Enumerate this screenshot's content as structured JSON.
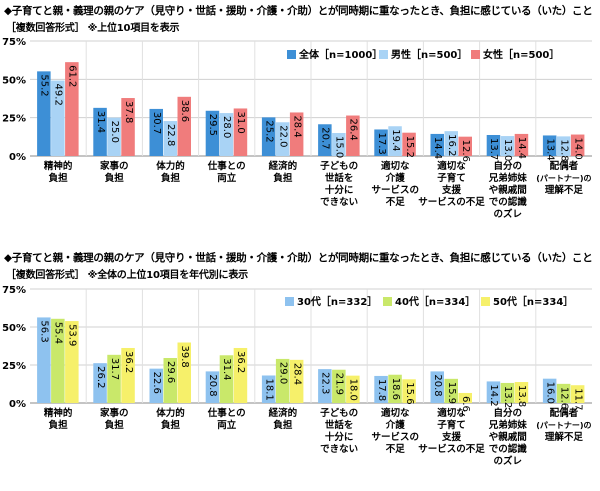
{
  "chart_data": [
    {
      "type": "bar",
      "title": "◆子育てと親・義理の親のケア（見守り・世話・援助・介護・介助）とが同時期に重なったとき、負担に感じている（いた）こと",
      "subtitle": "［複数回答形式］ ※上位10項目を表示",
      "ylim": [
        0,
        75
      ],
      "yticks": [
        "0%",
        "25%",
        "50%",
        "75%"
      ],
      "grid": true,
      "legend_position": "top-right",
      "categories": [
        [
          "精神的",
          "負担"
        ],
        [
          "家事の",
          "負担"
        ],
        [
          "体力的",
          "負担"
        ],
        [
          "仕事との",
          "両立"
        ],
        [
          "経済的",
          "負担"
        ],
        [
          "子どもの",
          "世話を",
          "十分に",
          "できない"
        ],
        [
          "適切な",
          "介護",
          "サービスの",
          "不足"
        ],
        [
          "適切な",
          "子育て",
          "支援",
          "サービスの不足"
        ],
        [
          "自分の",
          "兄弟姉妹",
          "や親戚間",
          "での認識",
          "のズレ"
        ],
        [
          "配偶者",
          "(パートナー)の",
          "理解不足"
        ]
      ],
      "series": [
        {
          "name": "全体［n=1000］",
          "color": "#3d8fd6",
          "values": [
            55.2,
            31.4,
            30.7,
            29.5,
            25.2,
            20.7,
            17.3,
            14.4,
            13.7,
            13.4
          ]
        },
        {
          "name": "男性［n=500］",
          "color": "#a9d3f5",
          "values": [
            49.2,
            25.0,
            22.8,
            28.0,
            22.0,
            15.0,
            19.4,
            16.2,
            13.0,
            12.8
          ]
        },
        {
          "name": "女性［n=500］",
          "color": "#f07c7c",
          "values": [
            61.2,
            37.8,
            38.6,
            31.0,
            28.4,
            26.4,
            15.2,
            12.6,
            14.4,
            14.0
          ]
        }
      ]
    },
    {
      "type": "bar",
      "title": "◆子育てと親・義理の親のケア（見守り・世話・援助・介護・介助）とが同時期に重なったとき、負担に感じている（いた）こと",
      "subtitle": "［複数回答形式］ ※全体の上位10項目を年代別に表示",
      "ylim": [
        0,
        75
      ],
      "yticks": [
        "0%",
        "25%",
        "50%",
        "75%"
      ],
      "grid": true,
      "legend_position": "top-right",
      "categories": [
        [
          "精神的",
          "負担"
        ],
        [
          "家事の",
          "負担"
        ],
        [
          "体力的",
          "負担"
        ],
        [
          "仕事との",
          "両立"
        ],
        [
          "経済的",
          "負担"
        ],
        [
          "子どもの",
          "世話を",
          "十分に",
          "できない"
        ],
        [
          "適切な",
          "介護",
          "サービスの",
          "不足"
        ],
        [
          "適切な",
          "子育て",
          "支援",
          "サービスの不足"
        ],
        [
          "自分の",
          "兄弟姉妹",
          "や親戚間",
          "での認識",
          "のズレ"
        ],
        [
          "配偶者",
          "(パートナー)の",
          "理解不足"
        ]
      ],
      "series": [
        {
          "name": "30代［n=332］",
          "color": "#8ec2ef",
          "values": [
            56.3,
            26.2,
            22.6,
            20.8,
            18.1,
            22.3,
            17.8,
            20.8,
            14.2,
            16.0
          ]
        },
        {
          "name": "40代［n=334］",
          "color": "#c9e86a",
          "values": [
            55.4,
            31.7,
            29.6,
            31.4,
            29.0,
            21.9,
            18.6,
            15.9,
            13.2,
            12.6
          ]
        },
        {
          "name": "50代［n=334］",
          "color": "#f6f06a",
          "values": [
            53.9,
            36.2,
            39.8,
            36.2,
            28.4,
            18.0,
            15.6,
            6.6,
            13.8,
            11.7
          ]
        }
      ]
    }
  ]
}
